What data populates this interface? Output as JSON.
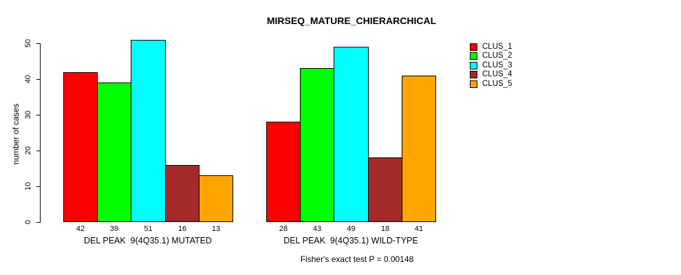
{
  "figure": {
    "title": "MIRSEQ_MATURE_CHIERARCHICAL",
    "footnote": "Fisher's exact test P = 0.00148"
  },
  "chart_data": {
    "type": "bar",
    "title": "MIRSEQ_MATURE_CHIERARCHICAL",
    "ylabel": "number of cases",
    "xlabel": "",
    "ylim": [
      0,
      52
    ],
    "yticks": [
      0,
      10,
      20,
      30,
      40,
      50
    ],
    "grid": false,
    "legend_position": "right",
    "bar_value_labels": true,
    "categories": [
      "DEL PEAK  9(4Q35.1) MUTATED",
      "DEL PEAK  9(4Q35.1) WILD-TYPE"
    ],
    "series": [
      {
        "name": "CLUS_1",
        "color": "#FF0000",
        "values": [
          42,
          28
        ]
      },
      {
        "name": "CLUS_2",
        "color": "#00FF00",
        "values": [
          39,
          43
        ]
      },
      {
        "name": "CLUS_3",
        "color": "#00FFFF",
        "values": [
          51,
          49
        ]
      },
      {
        "name": "CLUS_4",
        "color": "#A52A2A",
        "values": [
          16,
          18
        ]
      },
      {
        "name": "CLUS_5",
        "color": "#FFA500",
        "values": [
          13,
          41
        ]
      }
    ],
    "footnote": "Fisher's exact test P = 0.00148"
  }
}
